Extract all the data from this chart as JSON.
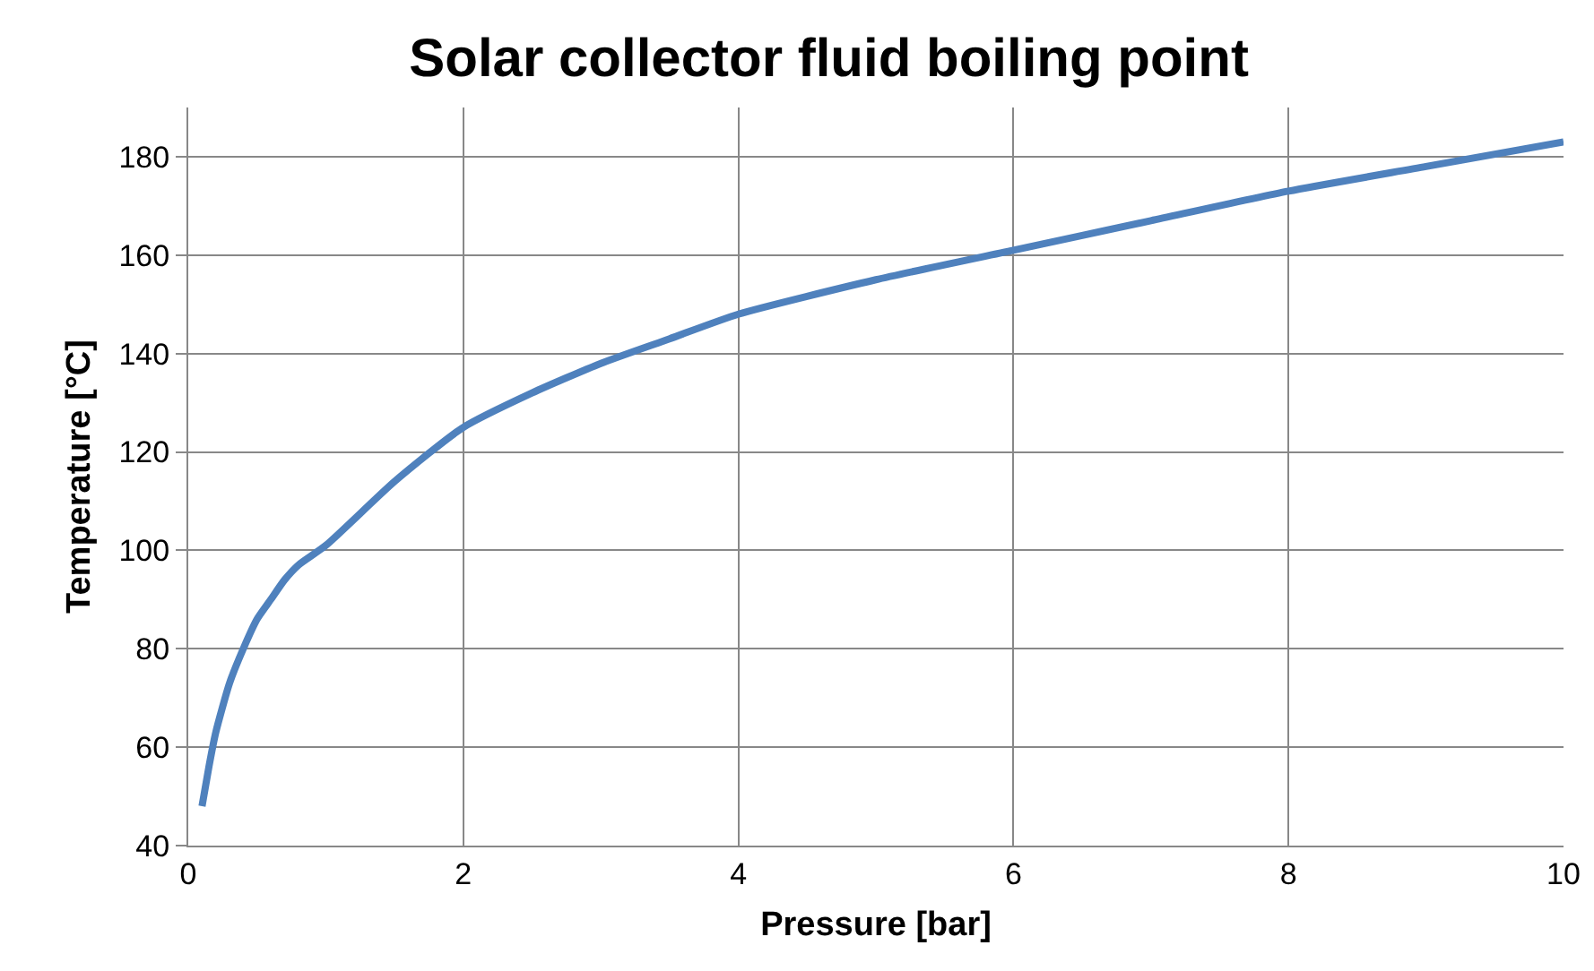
{
  "chart_data": {
    "type": "line",
    "title": "Solar collector fluid boiling point",
    "xlabel": "Pressure [bar]",
    "ylabel": "Temperature [°C]",
    "x": [
      0.1,
      0.15,
      0.2,
      0.3,
      0.4,
      0.5,
      0.6,
      0.7,
      0.8,
      1,
      1.5,
      2,
      2.5,
      3,
      3.5,
      4,
      5,
      6,
      7,
      8,
      9,
      10
    ],
    "series": [
      {
        "color": "#4f81bd",
        "values": [
          48,
          56,
          63,
          73,
          80,
          86,
          90,
          94,
          97,
          101,
          114,
          125,
          132,
          138,
          143,
          148,
          155,
          161,
          167,
          173,
          178,
          183
        ]
      }
    ],
    "xlim": [
      0,
      10
    ],
    "xticks": [
      0,
      2,
      4,
      6,
      8,
      10
    ],
    "ylim": [
      40,
      190
    ],
    "yticks": [
      40,
      60,
      80,
      100,
      120,
      140,
      160,
      180
    ],
    "grid": true,
    "marker": "none",
    "line_style": "solid"
  }
}
